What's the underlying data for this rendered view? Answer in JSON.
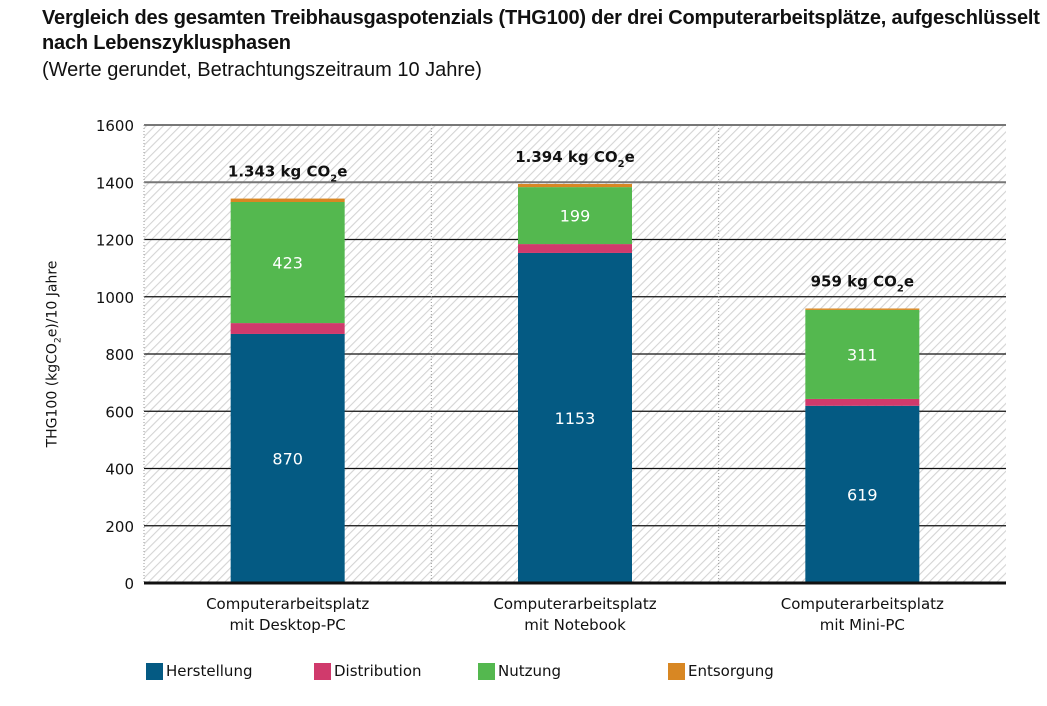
{
  "chart_data": {
    "type": "bar",
    "stacked": true,
    "title": "Vergleich des gesamten Treibhausgaspotenzials (THG100) der drei Computerarbeitsplätze, aufgeschlüsselt nach Lebenszyklusphasen",
    "subtitle": "(Werte gerundet, Betrachtungszeitraum 10 Jahre)",
    "xlabel": "",
    "ylabel": {
      "pre": "THG100 (kgCO",
      "sub": "2",
      "post": "e)/10 Jahre"
    },
    "ylim": [
      0,
      1600
    ],
    "yticks": [
      0,
      200,
      400,
      600,
      800,
      1000,
      1200,
      1400,
      1600
    ],
    "grid": true,
    "legend_position": "bottom",
    "categories": [
      {
        "line1": "Computerarbeitsplatz",
        "line2": "mit Desktop-PC"
      },
      {
        "line1": "Computerarbeitsplatz",
        "line2": "mit Notebook"
      },
      {
        "line1": "Computerarbeitsplatz",
        "line2": "mit Mini-PC"
      }
    ],
    "series": [
      {
        "name": "Herstellung",
        "color": "#045a83",
        "values": [
          870,
          1153,
          619
        ],
        "labeled": true
      },
      {
        "name": "Distribution",
        "color": "#d03a6c",
        "values": [
          38,
          31,
          24
        ],
        "labeled": false
      },
      {
        "name": "Nutzung",
        "color": "#54b84f",
        "values": [
          423,
          199,
          311
        ],
        "labeled": true
      },
      {
        "name": "Entsorgung",
        "color": "#d88723",
        "values": [
          12,
          11,
          5
        ],
        "labeled": false
      }
    ],
    "totals": [
      {
        "value": "1.343",
        "unit_pre": "kg CO",
        "unit_sub": "2",
        "unit_post": "e"
      },
      {
        "value": "1.394",
        "unit_pre": "kg CO",
        "unit_sub": "2",
        "unit_post": "e"
      },
      {
        "value": "959",
        "unit_pre": "kg CO",
        "unit_sub": "2",
        "unit_post": "e"
      }
    ]
  }
}
